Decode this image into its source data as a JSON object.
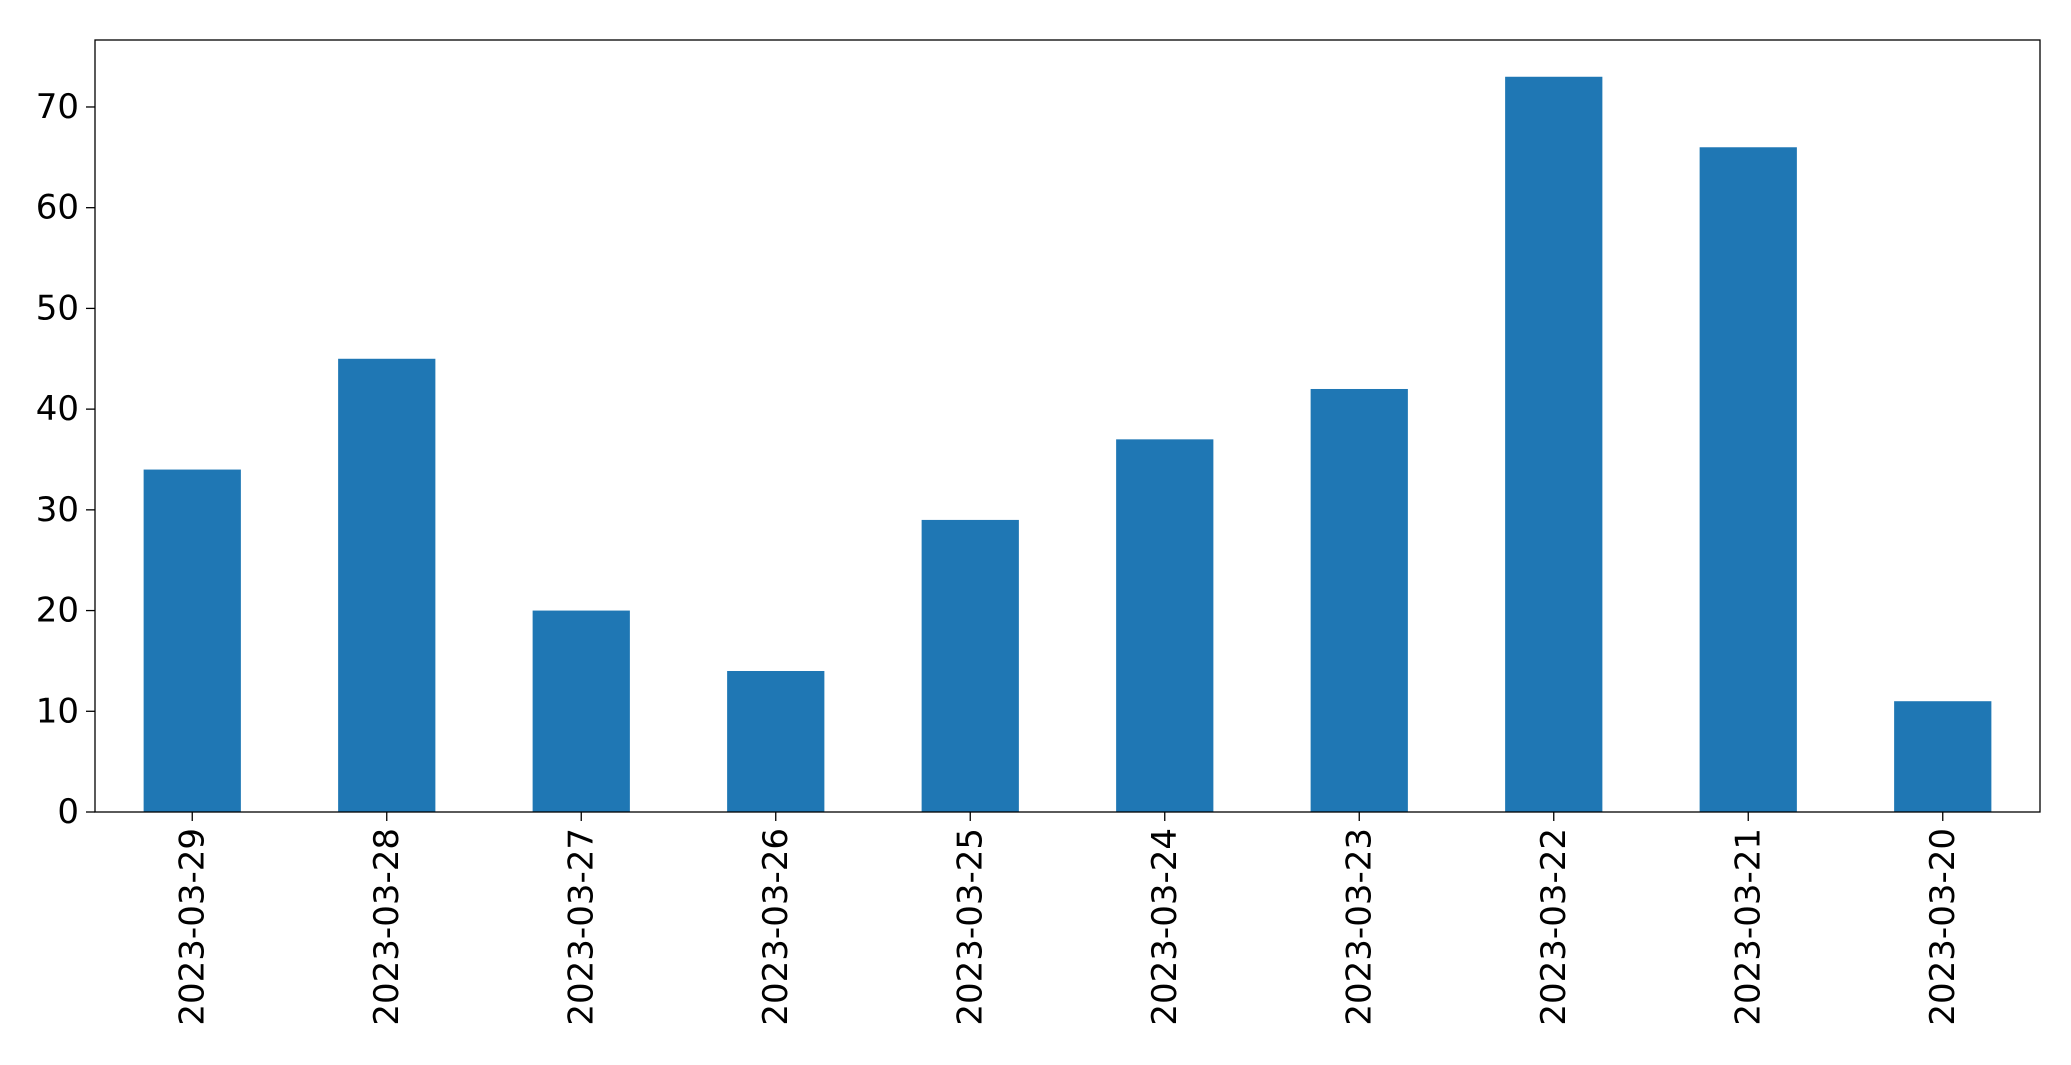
{
  "chart_data": {
    "type": "bar",
    "title": "",
    "xlabel": "",
    "ylabel": "",
    "categories": [
      "2023-03-29",
      "2023-03-28",
      "2023-03-27",
      "2023-03-26",
      "2023-03-25",
      "2023-03-24",
      "2023-03-23",
      "2023-03-22",
      "2023-03-21",
      "2023-03-20"
    ],
    "values": [
      34,
      45,
      20,
      14,
      29,
      37,
      42,
      73,
      66,
      11
    ],
    "ylim": [
      0,
      76.65
    ],
    "yticks": [
      0,
      10,
      20,
      30,
      40,
      50,
      60,
      70
    ],
    "grid": false,
    "legend": "none",
    "bar_color": "#1f77b4"
  }
}
